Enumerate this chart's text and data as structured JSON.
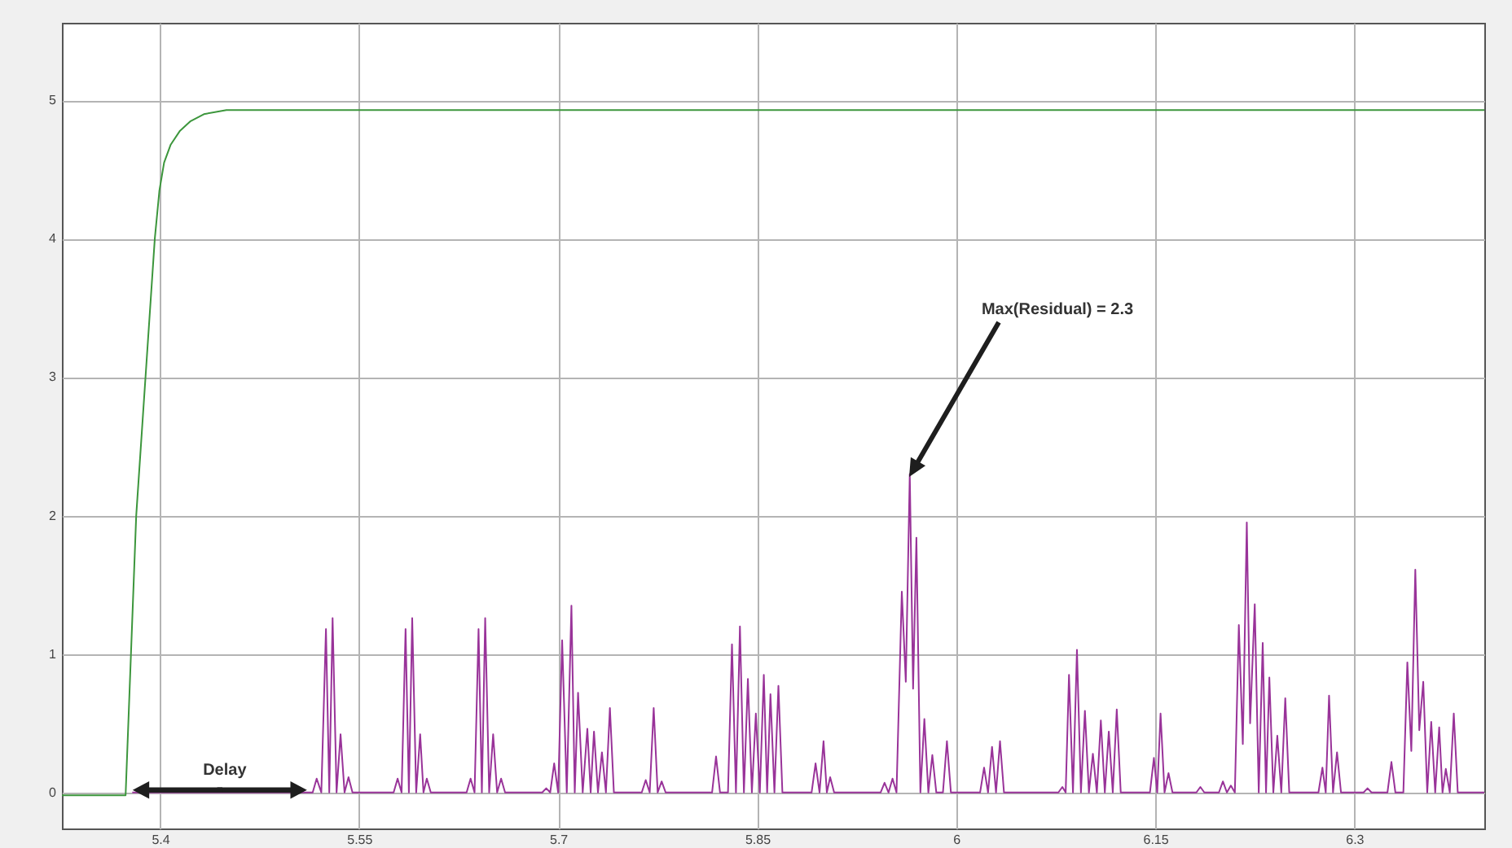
{
  "chart_data": {
    "type": "line",
    "xlim": [
      5.326,
      6.398
    ],
    "ylim": [
      -0.26,
      5.56
    ],
    "xticks": [
      5.4,
      5.55,
      5.7,
      5.85,
      6,
      6.15,
      6.3
    ],
    "yticks": [
      0,
      1,
      2,
      3,
      4,
      5
    ],
    "grid": true,
    "series": [
      {
        "color": "#3c963c",
        "x": [
          5.326,
          5.374,
          5.382,
          5.389,
          5.396,
          5.3995,
          5.403,
          5.408,
          5.415,
          5.423,
          5.433,
          5.45,
          5.5,
          6.398
        ],
        "values": [
          -0.02,
          -0.02,
          2,
          3,
          4,
          4.35,
          4.55,
          4.68,
          4.78,
          4.85,
          4.9,
          4.93,
          4.93,
          4.93
        ]
      },
      {
        "color": "#993399",
        "x": [
          5.379,
          5.515,
          5.518,
          5.5215,
          5.525,
          5.5275,
          5.53,
          5.533,
          5.536,
          5.539,
          5.542,
          5.545,
          5.576,
          5.579,
          5.582,
          5.585,
          5.5875,
          5.59,
          5.593,
          5.596,
          5.5985,
          5.601,
          5.604,
          5.631,
          5.634,
          5.637,
          5.64,
          5.6425,
          5.645,
          5.648,
          5.651,
          5.654,
          5.657,
          5.66,
          5.688,
          5.691,
          5.694,
          5.697,
          5.7,
          5.703,
          5.7065,
          5.71,
          5.7125,
          5.715,
          5.7185,
          5.722,
          5.7245,
          5.727,
          5.73,
          5.733,
          5.736,
          5.739,
          5.742,
          5.763,
          5.766,
          5.769,
          5.772,
          5.775,
          5.778,
          5.781,
          5.816,
          5.819,
          5.822,
          5.828,
          5.831,
          5.834,
          5.837,
          5.84,
          5.843,
          5.846,
          5.849,
          5.852,
          5.855,
          5.8575,
          5.86,
          5.863,
          5.866,
          5.869,
          5.891,
          5.894,
          5.897,
          5.9,
          5.9025,
          5.905,
          5.908,
          5.943,
          5.946,
          5.949,
          5.952,
          5.955,
          5.959,
          5.962,
          5.965,
          5.9675,
          5.97,
          5.973,
          5.976,
          5.979,
          5.982,
          5.985,
          5.99,
          5.993,
          5.996,
          6.018,
          6.021,
          6.024,
          6.027,
          6.03,
          6.033,
          6.036,
          6.077,
          6.08,
          6.0825,
          6.085,
          6.088,
          6.091,
          6.094,
          6.097,
          6.1,
          6.103,
          6.106,
          6.109,
          6.112,
          6.115,
          6.118,
          6.121,
          6.124,
          6.146,
          6.149,
          6.1515,
          6.154,
          6.157,
          6.16,
          6.163,
          6.181,
          6.184,
          6.187,
          6.198,
          6.201,
          6.204,
          6.207,
          6.21,
          6.213,
          6.216,
          6.219,
          6.2215,
          6.225,
          6.228,
          6.231,
          6.2335,
          6.236,
          6.239,
          6.242,
          6.245,
          6.248,
          6.251,
          6.273,
          6.276,
          6.2785,
          6.281,
          6.284,
          6.287,
          6.29,
          6.307,
          6.31,
          6.313,
          6.325,
          6.328,
          6.331,
          6.337,
          6.34,
          6.343,
          6.346,
          6.349,
          6.352,
          6.355,
          6.358,
          6.361,
          6.364,
          6.3665,
          6.369,
          6.372,
          6.375,
          6.378,
          6.398
        ],
        "values": [
          0,
          0,
          0.1,
          0,
          1.18,
          0,
          1.26,
          0,
          0.42,
          0,
          0.11,
          0,
          0,
          0.1,
          0,
          1.18,
          0,
          1.26,
          0,
          0.42,
          0,
          0.1,
          0,
          0,
          0.1,
          0,
          1.18,
          0,
          1.26,
          0,
          0.42,
          0,
          0.1,
          0,
          0,
          0.03,
          0,
          0.21,
          0,
          1.1,
          0,
          1.35,
          0,
          0.72,
          0,
          0.46,
          0,
          0.44,
          0,
          0.29,
          0,
          0.61,
          0,
          0,
          0.09,
          0,
          0.61,
          0,
          0.08,
          0,
          0,
          0.26,
          0,
          0,
          1.07,
          0,
          1.2,
          0,
          0.82,
          0,
          0.57,
          0,
          0.85,
          0,
          0.71,
          0,
          0.77,
          0,
          0,
          0.21,
          0,
          0.37,
          0,
          0.11,
          0,
          0,
          0.07,
          0,
          0.1,
          0,
          1.45,
          0.8,
          2.3,
          0.75,
          1.84,
          0,
          0.53,
          0,
          0.27,
          0,
          0,
          0.37,
          0,
          0,
          0.18,
          0,
          0.33,
          0,
          0.37,
          0,
          0,
          0.04,
          0,
          0.85,
          0,
          1.03,
          0,
          0.59,
          0,
          0.28,
          0,
          0.52,
          0,
          0.44,
          0,
          0.6,
          0,
          0,
          0.25,
          0,
          0.57,
          0,
          0.14,
          0,
          0,
          0.04,
          0,
          0,
          0.08,
          0,
          0.05,
          0,
          1.21,
          0.35,
          1.95,
          0.5,
          1.36,
          0,
          1.08,
          0,
          0.83,
          0,
          0.41,
          0,
          0.68,
          0,
          0,
          0.18,
          0,
          0.7,
          0,
          0.29,
          0,
          0,
          0.03,
          0,
          0,
          0.22,
          0,
          0,
          0.94,
          0.3,
          1.61,
          0.45,
          0.8,
          0,
          0.51,
          0,
          0.47,
          0,
          0.17,
          0,
          0.57,
          0,
          0
        ]
      }
    ],
    "annotations": [
      "Max(Residual) = 2.3",
      {
        "text": "Delay",
        "x": 5.445,
        "y": 0
      }
    ]
  }
}
